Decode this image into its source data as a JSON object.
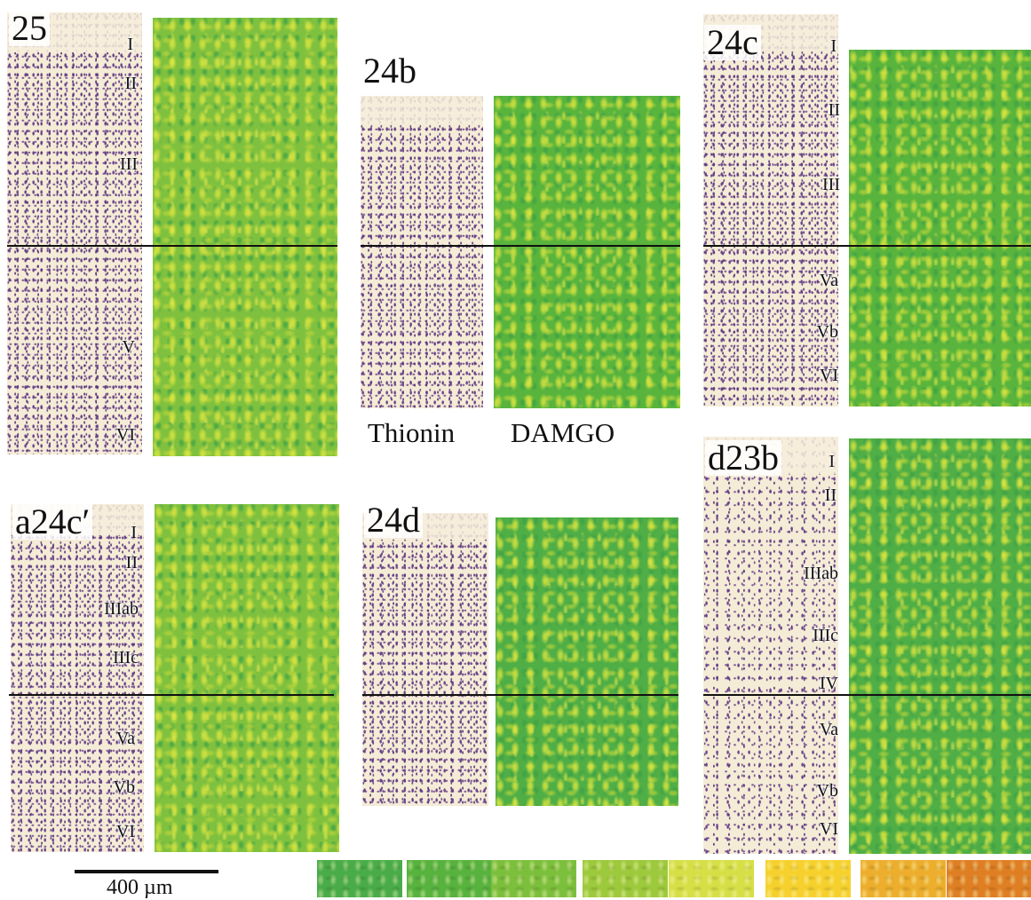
{
  "regions": [
    {
      "id": "25",
      "label": "25",
      "layers": [
        "I",
        "II",
        "III",
        "V",
        "VI"
      ]
    },
    {
      "id": "24b",
      "label": "24b",
      "layers": []
    },
    {
      "id": "24c",
      "label": "24c",
      "layers": [
        "I",
        "II",
        "III",
        "Va",
        "Vb",
        "VI"
      ]
    },
    {
      "id": "a24c_prime",
      "label": "a24c′",
      "layers": [
        "I",
        "II",
        "IIIab",
        "IIIc",
        "Va",
        "Vb",
        "VI"
      ]
    },
    {
      "id": "24d",
      "label": "24d",
      "layers": []
    },
    {
      "id": "d23b",
      "label": "d23b",
      "layers": [
        "I",
        "II",
        "IIIab",
        "IIIc",
        "IV",
        "Va",
        "Vb",
        "VI"
      ]
    }
  ],
  "stain_labels": {
    "thionin": "Thionin",
    "damgo": "DAMGO"
  },
  "scale_bar": {
    "label": "400 µm",
    "length_um": 400
  },
  "color_scale": {
    "swatch_colors": [
      "#4aac48",
      "#57b23e",
      "#7cbf3c",
      "#9dc93c",
      "#d6df46",
      "#f6d12e",
      "#ecae2c",
      "#df7f24"
    ]
  }
}
